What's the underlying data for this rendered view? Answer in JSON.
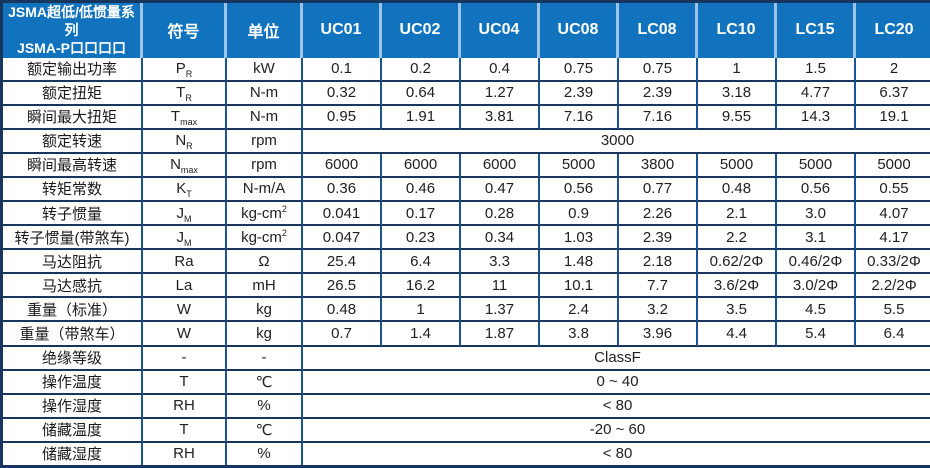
{
  "table": {
    "corner_header": {
      "line1": "JSMA超低/低惯量系列",
      "line2": "JSMA-P口口口口"
    },
    "symbol_header": "符号",
    "unit_header": "单位",
    "model_headers": [
      "UC01",
      "UC02",
      "UC04",
      "UC08",
      "LC08",
      "LC10",
      "LC15",
      "LC20"
    ],
    "rows": [
      {
        "label": "额定输出功率",
        "sym": "P",
        "sub": "R",
        "unit": "kW",
        "values": [
          "0.1",
          "0.2",
          "0.4",
          "0.75",
          "0.75",
          "1",
          "1.5",
          "2"
        ]
      },
      {
        "label": "额定扭矩",
        "sym": "T",
        "sub": "R",
        "unit": "N-m",
        "values": [
          "0.32",
          "0.64",
          "1.27",
          "2.39",
          "2.39",
          "3.18",
          "4.77",
          "6.37"
        ]
      },
      {
        "label": "瞬间最大扭矩",
        "sym": "T",
        "sub": "max",
        "unit": "N-m",
        "values": [
          "0.95",
          "1.91",
          "3.81",
          "7.16",
          "7.16",
          "9.55",
          "14.3",
          "19.1"
        ]
      },
      {
        "label": "额定转速",
        "sym": "N",
        "sub": "R",
        "unit": "rpm",
        "span": "3000"
      },
      {
        "label": "瞬间最高转速",
        "sym": "N",
        "sub": "max",
        "unit": "rpm",
        "values": [
          "6000",
          "6000",
          "6000",
          "5000",
          "3800",
          "5000",
          "5000",
          "5000"
        ]
      },
      {
        "label": "转矩常数",
        "sym": "K",
        "sub": "T",
        "unit": "N-m/A",
        "values": [
          "0.36",
          "0.46",
          "0.47",
          "0.56",
          "0.77",
          "0.48",
          "0.56",
          "0.55"
        ]
      },
      {
        "label": "转子惯量",
        "sym": "J",
        "sub": "M",
        "unit": "kg-cm",
        "unit_sup": "2",
        "values": [
          "0.041",
          "0.17",
          "0.28",
          "0.9",
          "2.26",
          "2.1",
          "3.0",
          "4.07"
        ]
      },
      {
        "label": "转子惯量(带煞车)",
        "sym": "J",
        "sub": "M",
        "unit": "kg-cm",
        "unit_sup": "2",
        "values": [
          "0.047",
          "0.23",
          "0.34",
          "1.03",
          "2.39",
          "2.2",
          "3.1",
          "4.17"
        ]
      },
      {
        "label": "马达阻抗",
        "sym": "Ra",
        "unit": "Ω",
        "values": [
          "25.4",
          "6.4",
          "3.3",
          "1.48",
          "2.18",
          "0.62/2Φ",
          "0.46/2Φ",
          "0.33/2Φ"
        ]
      },
      {
        "label": "马达感抗",
        "sym": "La",
        "unit": "mH",
        "values": [
          "26.5",
          "16.2",
          "11",
          "10.1",
          "7.7",
          "3.6/2Φ",
          "3.0/2Φ",
          "2.2/2Φ"
        ]
      },
      {
        "label": "重量（标准）",
        "sym": "W",
        "unit": "kg",
        "values": [
          "0.48",
          "1",
          "1.37",
          "2.4",
          "3.2",
          "3.5",
          "4.5",
          "5.5"
        ]
      },
      {
        "label": "重量（带煞车）",
        "sym": "W",
        "unit": "kg",
        "values": [
          "0.7",
          "1.4",
          "1.87",
          "3.8",
          "3.96",
          "4.4",
          "5.4",
          "6.4"
        ]
      },
      {
        "label": "绝缘等级",
        "sym": "-",
        "unit": "-",
        "span": "ClassF"
      },
      {
        "label": "操作温度",
        "sym": "T",
        "unit": "℃",
        "span": "0 ~ 40"
      },
      {
        "label": "操作湿度",
        "sym": "RH",
        "unit": "%",
        "span": "< 80"
      },
      {
        "label": "储藏温度",
        "sym": "T",
        "unit": "℃",
        "span": "-20 ~ 60"
      },
      {
        "label": "储藏湿度",
        "sym": "RH",
        "unit": "%",
        "span": "< 80"
      }
    ]
  }
}
